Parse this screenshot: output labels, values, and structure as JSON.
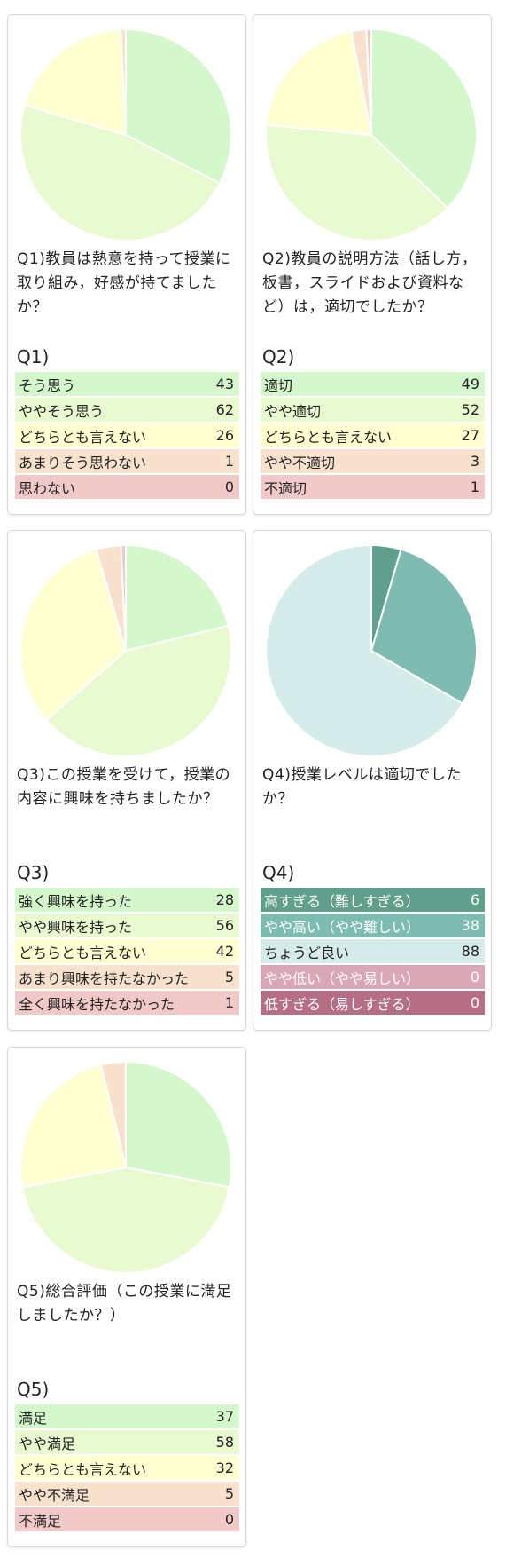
{
  "chart_data": [
    {
      "type": "pie",
      "title": "Q1)",
      "question": "Q1)教員は熱意を持って授業に取り組み，好感が持てましたか？",
      "categories": [
        "そう思う",
        "ややそう思う",
        "どちらとも言えない",
        "あまりそう思わない",
        "思わない"
      ],
      "values": [
        43,
        62,
        26,
        1,
        0
      ],
      "colors": [
        "#d4f7cc",
        "#eafad0",
        "#ffffd2",
        "#f8e2cd",
        "#f2c9c9"
      ],
      "text_color": "#222222"
    },
    {
      "type": "pie",
      "title": "Q2)",
      "question": "Q2)教員の説明方法（話し方，板書，スライドおよび資料など）は，適切でしたか？",
      "categories": [
        "適切",
        "やや適切",
        "どちらとも言えない",
        "やや不適切",
        "不適切"
      ],
      "values": [
        49,
        52,
        27,
        3,
        1
      ],
      "colors": [
        "#d4f7cc",
        "#eafad0",
        "#ffffd2",
        "#f8e2cd",
        "#f2c9c9"
      ],
      "text_color": "#222222"
    },
    {
      "type": "pie",
      "title": "Q3)",
      "question": "Q3)この授業を受けて，授業の内容に興味を持ちましたか？",
      "categories": [
        "強く興味を持った",
        "やや興味を持った",
        "どちらとも言えない",
        "あまり興味を持たなかった",
        "全く興味を持たなかった"
      ],
      "values": [
        28,
        56,
        42,
        5,
        1
      ],
      "colors": [
        "#d4f7cc",
        "#eafad0",
        "#ffffd2",
        "#f8e2cd",
        "#f2c9c9"
      ],
      "text_color": "#222222"
    },
    {
      "type": "pie",
      "title": "Q4)",
      "question": "Q4)授業レベルは適切でしたか？",
      "categories": [
        "高すぎる（難しすぎる）",
        "やや高い（やや難しい）",
        "ちょうど良い",
        "やや低い（やや易しい）",
        "低すぎる（易しすぎる）"
      ],
      "values": [
        6,
        38,
        88,
        0,
        0
      ],
      "colors": [
        "#5f9f8c",
        "#7ebcb1",
        "#d6ecea",
        "#daa7b6",
        "#b56e84"
      ],
      "text_colors": [
        "#ffffff",
        "#ffffff",
        "#222222",
        "#ffffff",
        "#ffffff"
      ]
    },
    {
      "type": "pie",
      "title": "Q5)",
      "question": "Q5)総合評価（この授業に満足しましたか？）",
      "categories": [
        "満足",
        "やや満足",
        "どちらとも言えない",
        "やや不満足",
        "不満足"
      ],
      "values": [
        37,
        58,
        32,
        5,
        0
      ],
      "colors": [
        "#d4f7cc",
        "#eafad0",
        "#ffffd2",
        "#f8e2cd",
        "#f2c9c9"
      ],
      "text_color": "#222222"
    }
  ]
}
